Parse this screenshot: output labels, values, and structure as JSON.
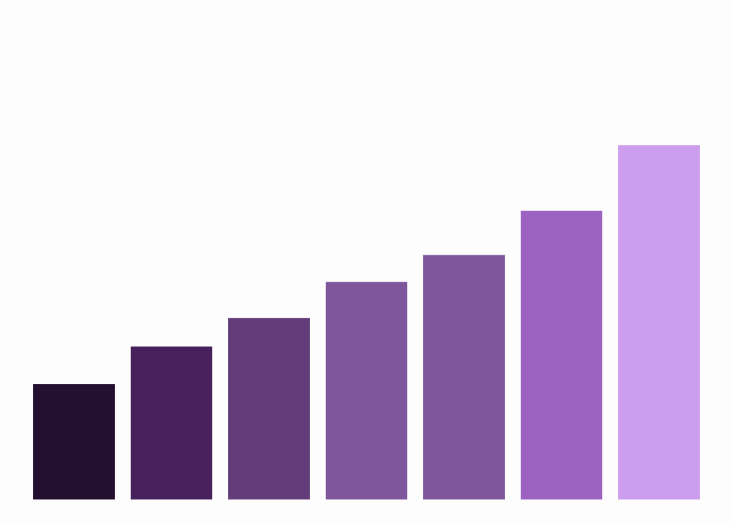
{
  "chart_data": {
    "type": "bar",
    "title": "",
    "xlabel": "",
    "ylabel": "",
    "ylim": [
      0,
      100
    ],
    "grid": false,
    "legend": "none",
    "values": [
      32.6,
      43.2,
      51.2,
      61.4,
      69.0,
      81.5,
      100
    ],
    "colors": [
      "#230f30",
      "#47215c",
      "#633d79",
      "#7f569c",
      "#7f569c",
      "#9c62c1",
      "#cc9eed"
    ]
  }
}
